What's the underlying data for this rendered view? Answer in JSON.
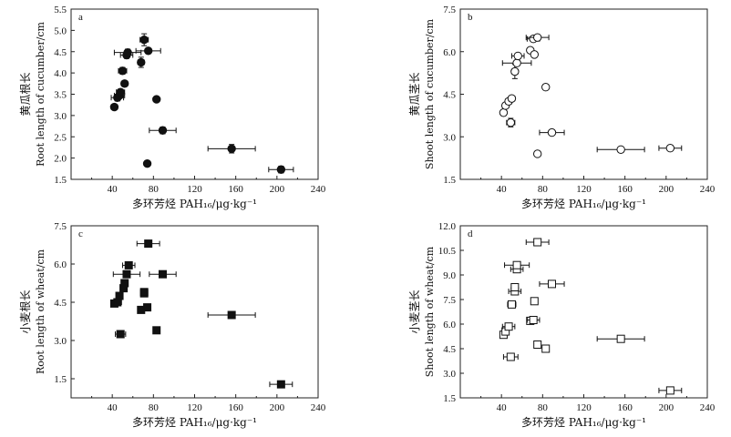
{
  "chart_data": [
    {
      "type": "scatter",
      "panel_label": "a",
      "marker": "filled-circle",
      "xlabel_cn": "多环芳烃 PAH₁₆/μg·kg⁻¹",
      "ylabel_cn": "黄瓜根长",
      "ylabel_en": "Root length of cucumber/cm",
      "xlim": [
        0,
        240
      ],
      "ylim": [
        1.5,
        5.5
      ],
      "xticks": [
        0,
        40,
        80,
        120,
        160,
        200,
        240
      ],
      "yticks": [
        1.5,
        2.0,
        2.5,
        3.0,
        3.5,
        4.0,
        4.5,
        5.0,
        5.5
      ],
      "points": [
        {
          "x": 42,
          "y": 3.2,
          "xerr": 3,
          "yerr": 0.05
        },
        {
          "x": 45,
          "y": 3.42,
          "xerr": 6,
          "yerr": 0.08
        },
        {
          "x": 47,
          "y": 3.47,
          "xerr": 5,
          "yerr": 0.06
        },
        {
          "x": 48,
          "y": 3.55,
          "xerr": 4,
          "yerr": 0.07
        },
        {
          "x": 50,
          "y": 4.05,
          "xerr": 4,
          "yerr": 0.08
        },
        {
          "x": 52,
          "y": 3.75,
          "xerr": 3,
          "yerr": 0.06
        },
        {
          "x": 54,
          "y": 4.42,
          "xerr": 6,
          "yerr": 0.08
        },
        {
          "x": 55,
          "y": 4.48,
          "xerr": 13,
          "yerr": 0.08
        },
        {
          "x": 68,
          "y": 4.25,
          "xerr": 3,
          "yerr": 0.12
        },
        {
          "x": 71,
          "y": 4.78,
          "xerr": 4,
          "yerr": 0.14
        },
        {
          "x": 74,
          "y": 1.87,
          "xerr": 2,
          "yerr": 0.06
        },
        {
          "x": 75,
          "y": 4.52,
          "xerr": 12,
          "yerr": 0.06
        },
        {
          "x": 83,
          "y": 3.38,
          "xerr": 2,
          "yerr": 0.05
        },
        {
          "x": 89,
          "y": 2.65,
          "xerr": 13,
          "yerr": 0.08
        },
        {
          "x": 156,
          "y": 2.22,
          "xerr": 23,
          "yerr": 0.1
        },
        {
          "x": 204,
          "y": 1.73,
          "xerr": 12,
          "yerr": 0.08
        }
      ]
    },
    {
      "type": "scatter",
      "panel_label": "b",
      "marker": "open-circle",
      "xlabel_cn": "多环芳烃 PAH₁₆/μg·kg⁻¹",
      "ylabel_cn": "黄瓜茎长",
      "ylabel_en": "Shoot length of cucumber/cm",
      "xlim": [
        0,
        240
      ],
      "ylim": [
        1.5,
        7.5
      ],
      "xticks": [
        0,
        40,
        80,
        120,
        160,
        200,
        240
      ],
      "yticks": [
        1.5,
        3.0,
        4.5,
        6.0,
        7.5
      ],
      "points": [
        {
          "x": 42,
          "y": 3.85,
          "xerr": 2,
          "yerr": 0.06
        },
        {
          "x": 44,
          "y": 4.1,
          "xerr": 2,
          "yerr": 0.06
        },
        {
          "x": 47,
          "y": 4.25,
          "xerr": 3,
          "yerr": 0.06
        },
        {
          "x": 49,
          "y": 3.5,
          "xerr": 4,
          "yerr": 0.15
        },
        {
          "x": 50,
          "y": 4.35,
          "xerr": 3,
          "yerr": 0.06
        },
        {
          "x": 53,
          "y": 5.3,
          "xerr": 3,
          "yerr": 0.25
        },
        {
          "x": 55,
          "y": 5.6,
          "xerr": 14,
          "yerr": 0.1
        },
        {
          "x": 56,
          "y": 5.85,
          "xerr": 6,
          "yerr": 0.06
        },
        {
          "x": 68,
          "y": 6.05,
          "xerr": 2,
          "yerr": 0.08
        },
        {
          "x": 71,
          "y": 6.45,
          "xerr": 6,
          "yerr": 0.08
        },
        {
          "x": 72,
          "y": 5.9,
          "xerr": 2,
          "yerr": 0.06
        },
        {
          "x": 75,
          "y": 2.4,
          "xerr": 2,
          "yerr": 0.06
        },
        {
          "x": 75,
          "y": 6.5,
          "xerr": 11,
          "yerr": 0.06
        },
        {
          "x": 83,
          "y": 4.75,
          "xerr": 2,
          "yerr": 0.06
        },
        {
          "x": 89,
          "y": 3.15,
          "xerr": 12,
          "yerr": 0.06
        },
        {
          "x": 156,
          "y": 2.55,
          "xerr": 23,
          "yerr": 0.06
        },
        {
          "x": 204,
          "y": 2.6,
          "xerr": 11,
          "yerr": 0.06
        }
      ]
    },
    {
      "type": "scatter",
      "panel_label": "c",
      "marker": "filled-square",
      "xlabel_cn": "多环芳烃 PAH₁₆/μg·kg⁻¹",
      "ylabel_cn": "小麦根长",
      "ylabel_en": "Root length of wheat/cm",
      "xlim": [
        0,
        240
      ],
      "ylim": [
        0.75,
        7.5
      ],
      "xticks": [
        0,
        40,
        80,
        120,
        160,
        200,
        240
      ],
      "yticks": [
        1.5,
        3.0,
        4.5,
        6.0,
        7.5
      ],
      "points": [
        {
          "x": 42,
          "y": 4.45,
          "xerr": 3,
          "yerr": 0.06
        },
        {
          "x": 45,
          "y": 4.5,
          "xerr": 4,
          "yerr": 0.06
        },
        {
          "x": 47,
          "y": 4.75,
          "xerr": 3,
          "yerr": 0.06
        },
        {
          "x": 48,
          "y": 3.25,
          "xerr": 5,
          "yerr": 0.12
        },
        {
          "x": 51,
          "y": 5.05,
          "xerr": 3,
          "yerr": 0.06
        },
        {
          "x": 52,
          "y": 5.25,
          "xerr": 3,
          "yerr": 0.06
        },
        {
          "x": 54,
          "y": 5.6,
          "xerr": 13,
          "yerr": 0.06
        },
        {
          "x": 56,
          "y": 5.95,
          "xerr": 6,
          "yerr": 0.06
        },
        {
          "x": 68,
          "y": 4.2,
          "xerr": 2,
          "yerr": 0.06
        },
        {
          "x": 71,
          "y": 4.85,
          "xerr": 2,
          "yerr": 0.06
        },
        {
          "x": 71,
          "y": 4.9,
          "xerr": 2,
          "yerr": 0.06
        },
        {
          "x": 74,
          "y": 4.3,
          "xerr": 2,
          "yerr": 0.06
        },
        {
          "x": 75,
          "y": 6.8,
          "xerr": 11,
          "yerr": 0.06
        },
        {
          "x": 83,
          "y": 3.4,
          "xerr": 2,
          "yerr": 0.06
        },
        {
          "x": 89,
          "y": 5.6,
          "xerr": 13,
          "yerr": 0.06
        },
        {
          "x": 156,
          "y": 4.0,
          "xerr": 23,
          "yerr": 0.06
        },
        {
          "x": 204,
          "y": 1.28,
          "xerr": 11,
          "yerr": 0.06
        }
      ]
    },
    {
      "type": "scatter",
      "panel_label": "d",
      "marker": "open-square",
      "xlabel_cn": "多环芳烃 PAH₁₆/μg·kg⁻¹",
      "ylabel_cn": "小麦茎长",
      "ylabel_en": "Shoot length of wheat/cm",
      "xlim": [
        0,
        240
      ],
      "ylim": [
        1.5,
        12.0
      ],
      "xticks": [
        0,
        40,
        80,
        120,
        160,
        200,
        240
      ],
      "yticks": [
        1.5,
        3.0,
        4.5,
        6.0,
        7.5,
        9.0,
        10.5,
        12.0
      ],
      "points": [
        {
          "x": 42,
          "y": 5.35,
          "xerr": 2,
          "yerr": 0.1
        },
        {
          "x": 44,
          "y": 5.55,
          "xerr": 2,
          "yerr": 0.1
        },
        {
          "x": 47,
          "y": 5.85,
          "xerr": 6,
          "yerr": 0.15
        },
        {
          "x": 49,
          "y": 4.0,
          "xerr": 7,
          "yerr": 0.1
        },
        {
          "x": 50,
          "y": 7.2,
          "xerr": 4,
          "yerr": 0.1
        },
        {
          "x": 53,
          "y": 8.0,
          "xerr": 6,
          "yerr": 0.15
        },
        {
          "x": 53,
          "y": 8.25,
          "xerr": 3,
          "yerr": 0.1
        },
        {
          "x": 55,
          "y": 9.35,
          "xerr": 6,
          "yerr": 0.1
        },
        {
          "x": 55,
          "y": 9.6,
          "xerr": 12,
          "yerr": 0.1
        },
        {
          "x": 68,
          "y": 6.2,
          "xerr": 3,
          "yerr": 0.1
        },
        {
          "x": 71,
          "y": 6.25,
          "xerr": 6,
          "yerr": 0.1
        },
        {
          "x": 72,
          "y": 7.4,
          "xerr": 2,
          "yerr": 0.2
        },
        {
          "x": 75,
          "y": 4.75,
          "xerr": 2,
          "yerr": 0.1
        },
        {
          "x": 75,
          "y": 11.0,
          "xerr": 11,
          "yerr": 0.1
        },
        {
          "x": 83,
          "y": 4.5,
          "xerr": 2,
          "yerr": 0.1
        },
        {
          "x": 89,
          "y": 8.45,
          "xerr": 12,
          "yerr": 0.1
        },
        {
          "x": 156,
          "y": 5.1,
          "xerr": 23,
          "yerr": 0.1
        },
        {
          "x": 204,
          "y": 1.95,
          "xerr": 11,
          "yerr": 0.1
        }
      ]
    }
  ]
}
